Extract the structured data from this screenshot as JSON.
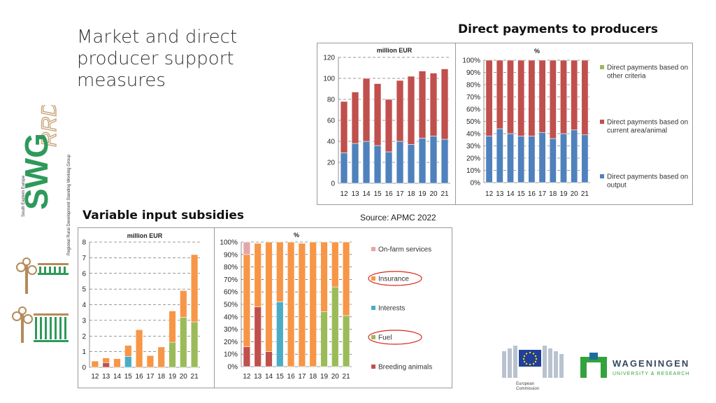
{
  "slide": {
    "title": "Market and direct producer support measures",
    "heading_direct": "Direct payments to producers",
    "heading_variable": "Variable input subsidies",
    "source": "Source: APMC 2022"
  },
  "colors": {
    "output_blue": "#4f81bd",
    "area_red": "#c0504d",
    "other_green": "#9bbb59",
    "orange": "#f79646",
    "breeding_red": "#c0504d",
    "fuel_green": "#9bbb59",
    "interests_blue": "#4bacc6",
    "onfarm_pink": "#e6a5a5",
    "insurance_orange": "#f08b46",
    "circle_red": "#d9261c"
  },
  "logos": {
    "swg_text": "SWG",
    "swg_script": "RRD",
    "swg_caption_1": "South Eastern Europe",
    "swg_caption_2": "Regional Rural Development Standing Working Group",
    "ec_line1": "European",
    "ec_line2": "Commission",
    "wur_line1": "WAGENINGEN",
    "wur_line2": "UNIVERSITY & RESEARCH"
  },
  "chart_data": [
    {
      "id": "dp_abs",
      "type": "bar",
      "title": "million EUR",
      "categories": [
        "12",
        "13",
        "14",
        "15",
        "16",
        "17",
        "18",
        "19",
        "20",
        "21"
      ],
      "ylim": [
        0,
        120
      ],
      "yticks": [
        0,
        20,
        40,
        60,
        80,
        100,
        120
      ],
      "grid": true,
      "stacked": true,
      "series": [
        {
          "name": "Direct payments based on output",
          "color": "#4f81bd",
          "values": [
            29,
            38,
            40,
            36,
            30,
            40,
            37,
            43,
            45,
            42
          ]
        },
        {
          "name": "Direct payments based on current area/animal",
          "color": "#c0504d",
          "values": [
            49,
            49,
            60,
            59,
            50,
            58,
            65,
            64,
            60,
            67
          ]
        }
      ]
    },
    {
      "id": "dp_pct",
      "type": "bar",
      "title": "%",
      "categories": [
        "12",
        "13",
        "14",
        "15",
        "16",
        "17",
        "18",
        "19",
        "20",
        "21"
      ],
      "ylim": [
        0,
        100
      ],
      "yticks": [
        "0%",
        "10%",
        "20%",
        "30%",
        "40%",
        "50%",
        "60%",
        "70%",
        "80%",
        "90%",
        "100%"
      ],
      "grid": true,
      "stacked": true,
      "legend": "right",
      "legend_order": [
        "Direct payments based on other criteria",
        "Direct payments based on current area/animal",
        "Direct payments based on output"
      ],
      "series": [
        {
          "name": "Direct payments based on output",
          "color": "#4f81bd",
          "values": [
            38,
            44,
            40,
            38,
            38,
            41,
            36,
            40,
            43,
            39
          ]
        },
        {
          "name": "Direct payments based on current area/animal",
          "color": "#c0504d",
          "values": [
            62,
            56,
            60,
            62,
            62,
            59,
            64,
            60,
            57,
            61
          ]
        },
        {
          "name": "Direct payments based on other criteria",
          "color": "#9bbb59",
          "values": [
            0,
            0,
            0,
            0,
            0,
            0,
            0,
            0,
            0,
            0
          ]
        }
      ]
    },
    {
      "id": "vis_abs",
      "type": "bar",
      "title": "million EUR",
      "categories": [
        "12",
        "13",
        "14",
        "15",
        "16",
        "17",
        "18",
        "19",
        "20",
        "21"
      ],
      "ylim": [
        0,
        8
      ],
      "yticks": [
        0,
        1,
        2,
        3,
        4,
        5,
        6,
        7,
        8
      ],
      "grid": true,
      "stacked": true,
      "series": [
        {
          "name": "Breeding animals",
          "color": "#c0504d",
          "values": [
            0,
            0.3,
            0,
            0,
            0,
            0,
            0,
            0,
            0,
            0
          ]
        },
        {
          "name": "Fuel",
          "color": "#9bbb59",
          "values": [
            0,
            0,
            0,
            0,
            0,
            0,
            0,
            1.6,
            3.2,
            2.9
          ]
        },
        {
          "name": "Interests",
          "color": "#4bacc6",
          "values": [
            0,
            0,
            0,
            0.7,
            0,
            0,
            0,
            0,
            0,
            0
          ]
        },
        {
          "name": "Insurance",
          "color": "#f79646",
          "values": [
            0.4,
            0.3,
            0.55,
            0.7,
            2.4,
            0.75,
            1.3,
            2.0,
            1.7,
            4.3
          ]
        }
      ]
    },
    {
      "id": "vis_pct",
      "type": "bar",
      "title": "%",
      "categories": [
        "12",
        "13",
        "14",
        "15",
        "16",
        "17",
        "18",
        "19",
        "20",
        "21"
      ],
      "ylim": [
        0,
        100
      ],
      "yticks": [
        "0%",
        "10%",
        "20%",
        "30%",
        "40%",
        "50%",
        "60%",
        "70%",
        "80%",
        "90%",
        "100%"
      ],
      "grid": true,
      "stacked": true,
      "legend": "right",
      "legend_order": [
        "On-farm services",
        "Insurance",
        "Interests",
        "Fuel",
        "Breeding animals"
      ],
      "circled": [
        "Insurance",
        "Fuel"
      ],
      "series": [
        {
          "name": "Breeding animals",
          "color": "#c0504d",
          "values": [
            16,
            48,
            12,
            0,
            0,
            0,
            0,
            0,
            0,
            0
          ]
        },
        {
          "name": "Fuel",
          "color": "#9bbb59",
          "values": [
            0,
            0,
            0,
            0,
            0,
            0,
            0,
            44,
            64,
            41
          ]
        },
        {
          "name": "Interests",
          "color": "#4bacc6",
          "values": [
            0,
            0,
            0,
            52,
            0,
            0,
            0,
            0,
            0,
            0
          ]
        },
        {
          "name": "Insurance",
          "color": "#f79646",
          "values": [
            74,
            51,
            88,
            48,
            100,
            99,
            100,
            56,
            36,
            59
          ]
        },
        {
          "name": "On-farm services",
          "color": "#e6a5a5",
          "values": [
            10,
            0,
            0,
            0,
            0,
            0,
            0,
            0,
            0,
            0
          ]
        }
      ]
    }
  ]
}
